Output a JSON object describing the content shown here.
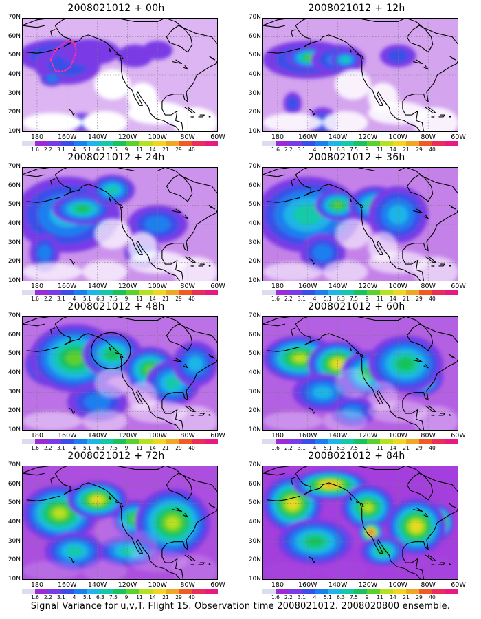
{
  "caption": "Signal Variance for u,v,T. Flight 15. Observation time 2008021012. 2008020800 ensemble.",
  "lat_labels": [
    "70N",
    "60N",
    "50N",
    "40N",
    "30N",
    "20N",
    "10N"
  ],
  "lon_labels": [
    "180",
    "160W",
    "140W",
    "120W",
    "100W",
    "80W",
    "60W"
  ],
  "colorbar": {
    "labels": [
      "1.6",
      "2.2",
      "3.1",
      "4",
      "5.1",
      "6.3",
      "7.5",
      "9",
      "11",
      "14",
      "21",
      "29",
      "40"
    ],
    "colors": [
      "#dcdcf0",
      "#9b2bd9",
      "#7a3be6",
      "#3a4fe8",
      "#1c7ff0",
      "#1eb5e8",
      "#15c9a8",
      "#19c25c",
      "#5cd12c",
      "#b8e022",
      "#f0d620",
      "#f0a726",
      "#f05a24",
      "#ea2e58",
      "#e81a82"
    ]
  },
  "land_color": "#ffffff",
  "panels": [
    {
      "title": "2008021012 + 00h",
      "blobs": [
        [
          -165,
          50,
          28,
          9,
          3
        ],
        [
          -162,
          49,
          14,
          6,
          6
        ],
        [
          -160,
          45,
          22,
          10,
          2
        ],
        [
          -145,
          52,
          20,
          7,
          1
        ],
        [
          -170,
          38,
          8,
          4,
          3
        ],
        [
          -150,
          15,
          8,
          5,
          2
        ],
        [
          -100,
          53,
          10,
          5,
          1
        ],
        [
          -115,
          50,
          12,
          6,
          1
        ]
      ],
      "mask_vals": [],
      "dotted": true,
      "circle": false
    },
    {
      "title": "2008021012 + 12h",
      "blobs": [
        [
          -160,
          48,
          30,
          10,
          3
        ],
        [
          -158,
          49,
          16,
          6,
          7
        ],
        [
          -140,
          48,
          18,
          8,
          3
        ],
        [
          -135,
          48,
          10,
          5,
          5
        ],
        [
          -170,
          25,
          6,
          6,
          2
        ],
        [
          -150,
          15,
          10,
          8,
          2
        ],
        [
          -100,
          50,
          12,
          6,
          2
        ]
      ],
      "mask_vals": [],
      "dotted": false,
      "circle": false
    },
    {
      "title": "2008021012 + 24h",
      "blobs": [
        [
          -160,
          45,
          35,
          20,
          4
        ],
        [
          -150,
          48,
          20,
          8,
          6
        ],
        [
          -175,
          25,
          10,
          10,
          3
        ],
        [
          -130,
          58,
          15,
          8,
          5
        ],
        [
          -100,
          40,
          20,
          10,
          3
        ],
        [
          -110,
          25,
          12,
          8,
          2
        ]
      ],
      "mask_vals": [],
      "dotted": false,
      "circle": false
    },
    {
      "title": "2008021012 + 36h",
      "blobs": [
        [
          -175,
          40,
          15,
          10,
          9
        ],
        [
          -160,
          45,
          35,
          20,
          5
        ],
        [
          -140,
          50,
          15,
          8,
          7
        ],
        [
          -115,
          50,
          18,
          10,
          6
        ],
        [
          -100,
          45,
          20,
          15,
          4
        ],
        [
          -150,
          25,
          15,
          10,
          3
        ]
      ],
      "mask_vals": [],
      "dotted": false,
      "circle": false
    },
    {
      "title": "2008021012 + 48h",
      "blobs": [
        [
          -170,
          45,
          18,
          12,
          9
        ],
        [
          -155,
          48,
          30,
          18,
          7
        ],
        [
          -130,
          50,
          20,
          12,
          6
        ],
        [
          -105,
          42,
          18,
          12,
          7
        ],
        [
          -90,
          35,
          18,
          12,
          5
        ],
        [
          -75,
          45,
          15,
          12,
          4
        ],
        [
          -140,
          25,
          20,
          10,
          3
        ]
      ],
      "mask_vals": [],
      "dotted": false,
      "circle": true
    },
    {
      "title": "2008021012 + 60h",
      "blobs": [
        [
          -165,
          48,
          25,
          12,
          8
        ],
        [
          -140,
          45,
          20,
          12,
          9
        ],
        [
          -120,
          40,
          18,
          12,
          6
        ],
        [
          -85,
          38,
          15,
          10,
          9
        ],
        [
          -95,
          45,
          25,
          15,
          6
        ],
        [
          -150,
          30,
          20,
          10,
          4
        ],
        [
          -130,
          20,
          15,
          8,
          3
        ]
      ],
      "mask_vals": [],
      "dotted": false,
      "circle": false
    },
    {
      "title": "2008021012 + 72h",
      "blobs": [
        [
          -165,
          45,
          25,
          15,
          8
        ],
        [
          -140,
          52,
          20,
          10,
          9
        ],
        [
          -115,
          42,
          15,
          10,
          7
        ],
        [
          -82,
          35,
          10,
          8,
          12
        ],
        [
          -90,
          40,
          25,
          18,
          8
        ],
        [
          -155,
          25,
          20,
          10,
          5
        ],
        [
          -120,
          25,
          20,
          8,
          5
        ]
      ],
      "mask_vals": [],
      "dotted": false,
      "circle": false
    },
    {
      "title": "2008021012 + 84h",
      "blobs": [
        [
          -170,
          50,
          20,
          15,
          9
        ],
        [
          -145,
          60,
          25,
          8,
          10
        ],
        [
          -120,
          48,
          18,
          12,
          8
        ],
        [
          -118,
          35,
          8,
          6,
          12
        ],
        [
          -75,
          40,
          12,
          10,
          13
        ],
        [
          -88,
          38,
          20,
          15,
          9
        ],
        [
          -155,
          30,
          25,
          12,
          6
        ],
        [
          -110,
          25,
          15,
          8,
          6
        ]
      ],
      "mask_vals": [],
      "dotted": false,
      "circle": false
    }
  ]
}
